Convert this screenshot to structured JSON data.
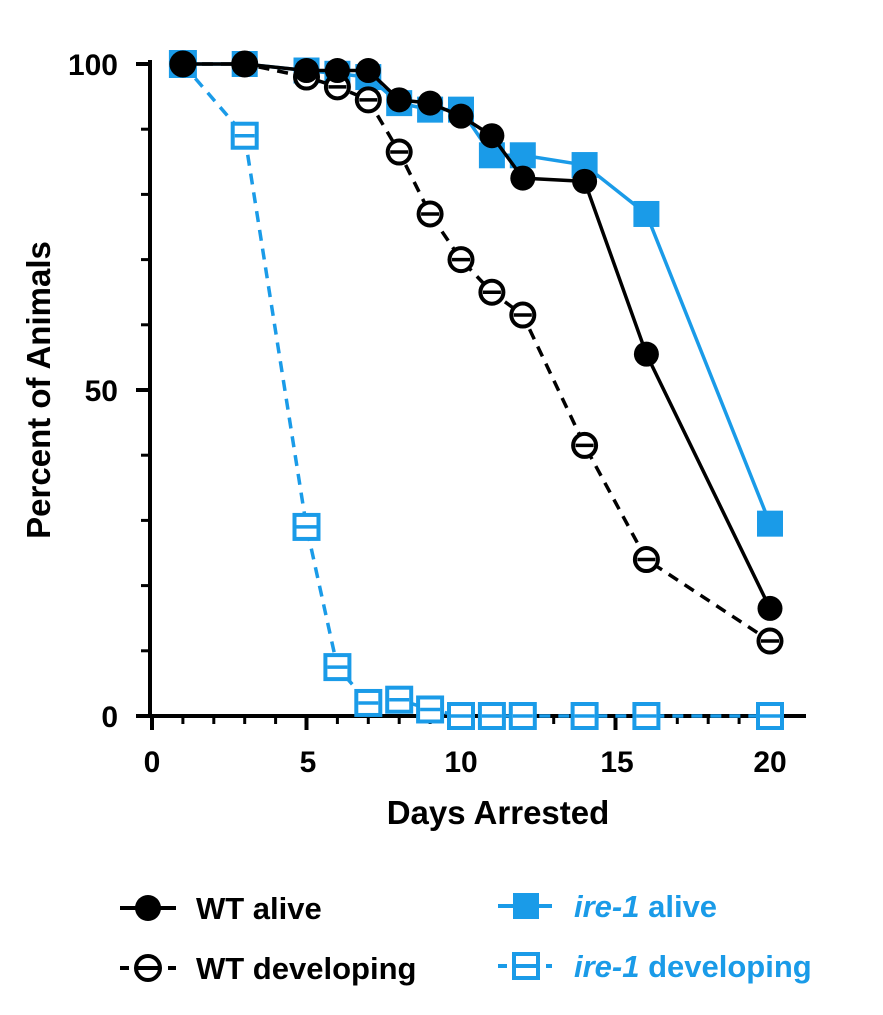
{
  "chart_data": {
    "type": "line",
    "title": "",
    "xlabel": "Days Arrested",
    "ylabel": "Percent of Animals",
    "xlim": [
      0,
      21
    ],
    "ylim": [
      0,
      100
    ],
    "x_ticks": [
      "0",
      "5",
      "10",
      "15",
      "20"
    ],
    "y_ticks": [
      "0",
      "50",
      "100"
    ],
    "colors": {
      "wt": "#000000",
      "ire1": "#1a9be8"
    },
    "series": [
      {
        "name": "ire-1 developing",
        "name_italic": "ire-1",
        "name_rest": " developing",
        "color": "#1a9be8",
        "marker": "open-square",
        "line": "dashed",
        "x": [
          1,
          3,
          5,
          6,
          7,
          8,
          9,
          10,
          11,
          12,
          14,
          16,
          20
        ],
        "y": [
          100,
          89,
          29,
          7.5,
          2,
          2.5,
          1,
          0,
          0,
          0,
          0,
          0,
          0
        ]
      },
      {
        "name": "ire-1 alive",
        "name_italic": "ire-1",
        "name_rest": " alive",
        "color": "#1a9be8",
        "marker": "filled-square",
        "line": "solid",
        "x": [
          1,
          3,
          5,
          6,
          7,
          8,
          9,
          10,
          11,
          12,
          14,
          16,
          20
        ],
        "y": [
          100,
          100,
          99,
          98.5,
          98,
          94,
          93,
          93,
          86,
          86,
          84.5,
          77,
          29.5
        ]
      },
      {
        "name": "WT developing",
        "color": "#000000",
        "marker": "open-circle",
        "line": "dashed",
        "x": [
          1,
          3,
          5,
          6,
          7,
          8,
          9,
          10,
          11,
          12,
          14,
          16,
          20
        ],
        "y": [
          100,
          100,
          98,
          96.5,
          94.5,
          86.5,
          77,
          70,
          65,
          61.5,
          41.5,
          24,
          11.5
        ]
      },
      {
        "name": "WT alive",
        "color": "#000000",
        "marker": "filled-circle",
        "line": "solid",
        "x": [
          1,
          3,
          5,
          6,
          7,
          8,
          9,
          10,
          11,
          12,
          14,
          16,
          20
        ],
        "y": [
          100,
          100,
          99,
          99,
          99,
          94.5,
          94,
          92,
          89,
          82.5,
          82,
          55.5,
          16.5
        ]
      }
    ],
    "legend": {
      "placement": "bottom",
      "left": [
        "WT alive",
        "WT developing"
      ],
      "right": [
        "ire-1 alive",
        "ire-1 developing"
      ]
    }
  }
}
